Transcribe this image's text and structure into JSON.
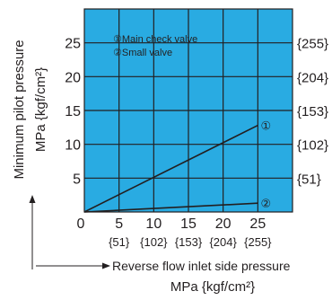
{
  "chart_data": {
    "type": "line",
    "xlabel": "Reverse flow inlet side pressure",
    "xlabel_unit": "MPa {kgf/cm²}",
    "ylabel": "Minimum pilot pressure",
    "ylabel_unit": "MPa {kgf/cm²}",
    "xlim": [
      0,
      30
    ],
    "ylim": [
      0,
      30
    ],
    "x_ticks": [
      5,
      10,
      15,
      20,
      25
    ],
    "x_tick_labels": [
      "5",
      "10",
      "15",
      "20",
      "25"
    ],
    "x_sub_tick_labels": [
      "{51}",
      "{102}",
      "{153}",
      "{204}",
      "{255}"
    ],
    "y_ticks": [
      5,
      10,
      15,
      20,
      25
    ],
    "y_tick_labels": [
      "5",
      "10",
      "15",
      "20",
      "25"
    ],
    "y_right_tick_labels": [
      "{51}",
      "{102}",
      "{153}",
      "{204}",
      "{255}"
    ],
    "origin_label": "0",
    "grid": true,
    "background_color": "#29abe2",
    "line_color": "#231f20",
    "legend": {
      "placement": "top-left",
      "entries": [
        "①Main check valve",
        "②Small valve"
      ]
    },
    "series": [
      {
        "name": "Main check valve",
        "marker": "①",
        "x": [
          0,
          25
        ],
        "y": [
          0,
          12.8
        ]
      },
      {
        "name": "Small valve",
        "marker": "②",
        "x": [
          0,
          25
        ],
        "y": [
          0,
          1.3
        ]
      }
    ]
  }
}
